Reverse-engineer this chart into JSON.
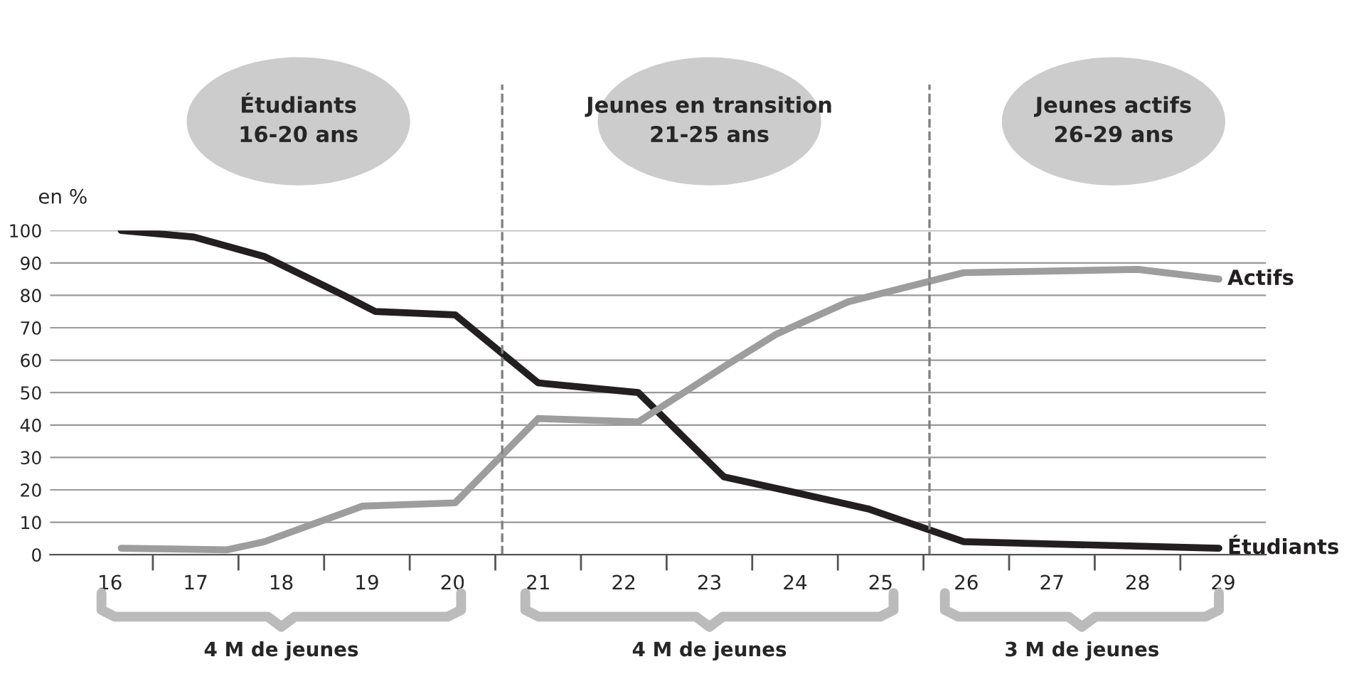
{
  "chart_data": {
    "type": "line",
    "ylabel": "en %",
    "annotations": [
      "Étudiants\n16-20 ans",
      "Jeunes en transition\n21-25 ans",
      "Jeunes actifs\n26-29 ans",
      "4 M de jeunes",
      "4 M de jeunes",
      "3 M de jeunes"
    ],
    "series": [
      {
        "name": "Étudiants",
        "color": "#231f20",
        "x": [
          16.13,
          16.98,
          17.8,
          18.73,
          19.1,
          20.03,
          21.0,
          22.17,
          23.17,
          24.03,
          24.87,
          25.97,
          28.95
        ],
        "values": [
          100,
          98,
          92,
          80,
          75,
          74,
          53,
          50,
          24,
          19,
          14,
          4,
          2
        ]
      },
      {
        "name": "Actifs",
        "color": "#9d9d9d",
        "x": [
          16.13,
          17.37,
          17.8,
          18.95,
          20.03,
          21.0,
          22.17,
          23.17,
          23.78,
          24.62,
          25.97,
          28.0,
          28.95
        ],
        "values": [
          2,
          1.5,
          4,
          15,
          16,
          42,
          41,
          58,
          68,
          78,
          87,
          88,
          85
        ]
      }
    ],
    "xlim": [
      15.3,
      29.5
    ],
    "xticks": [
      16,
      17,
      18,
      19,
      20,
      21,
      22,
      23,
      24,
      25,
      26,
      27,
      28,
      29,
      {
        "value": 16.5,
        "label": null
      },
      {
        "value": 17.5,
        "label": null
      },
      {
        "value": 18.5,
        "label": null
      },
      {
        "value": 19.5,
        "label": null
      },
      {
        "value": 20.5,
        "label": null
      },
      {
        "value": 21.5,
        "label": null
      },
      {
        "value": 22.5,
        "label": null
      },
      {
        "value": 23.5,
        "label": null
      },
      {
        "value": 24.5,
        "label": null
      },
      {
        "value": 25.5,
        "label": null
      },
      {
        "value": 26.5,
        "label": null
      },
      {
        "value": 27.5,
        "label": null
      },
      {
        "value": 28.5,
        "label": null
      }
    ],
    "ylim": [
      0,
      100
    ],
    "yticks": [
      0,
      10,
      20,
      30,
      40,
      50,
      60,
      70,
      80,
      90,
      100
    ],
    "grid": "y",
    "line_style": "solid",
    "marker": "none",
    "ref_lines": [
      {
        "axis": "x",
        "value": 20.58,
        "line_style": "dashed",
        "color": "#808080"
      },
      {
        "axis": "x",
        "value": 25.57,
        "line_style": "dashed",
        "color": "#808080"
      }
    ]
  }
}
